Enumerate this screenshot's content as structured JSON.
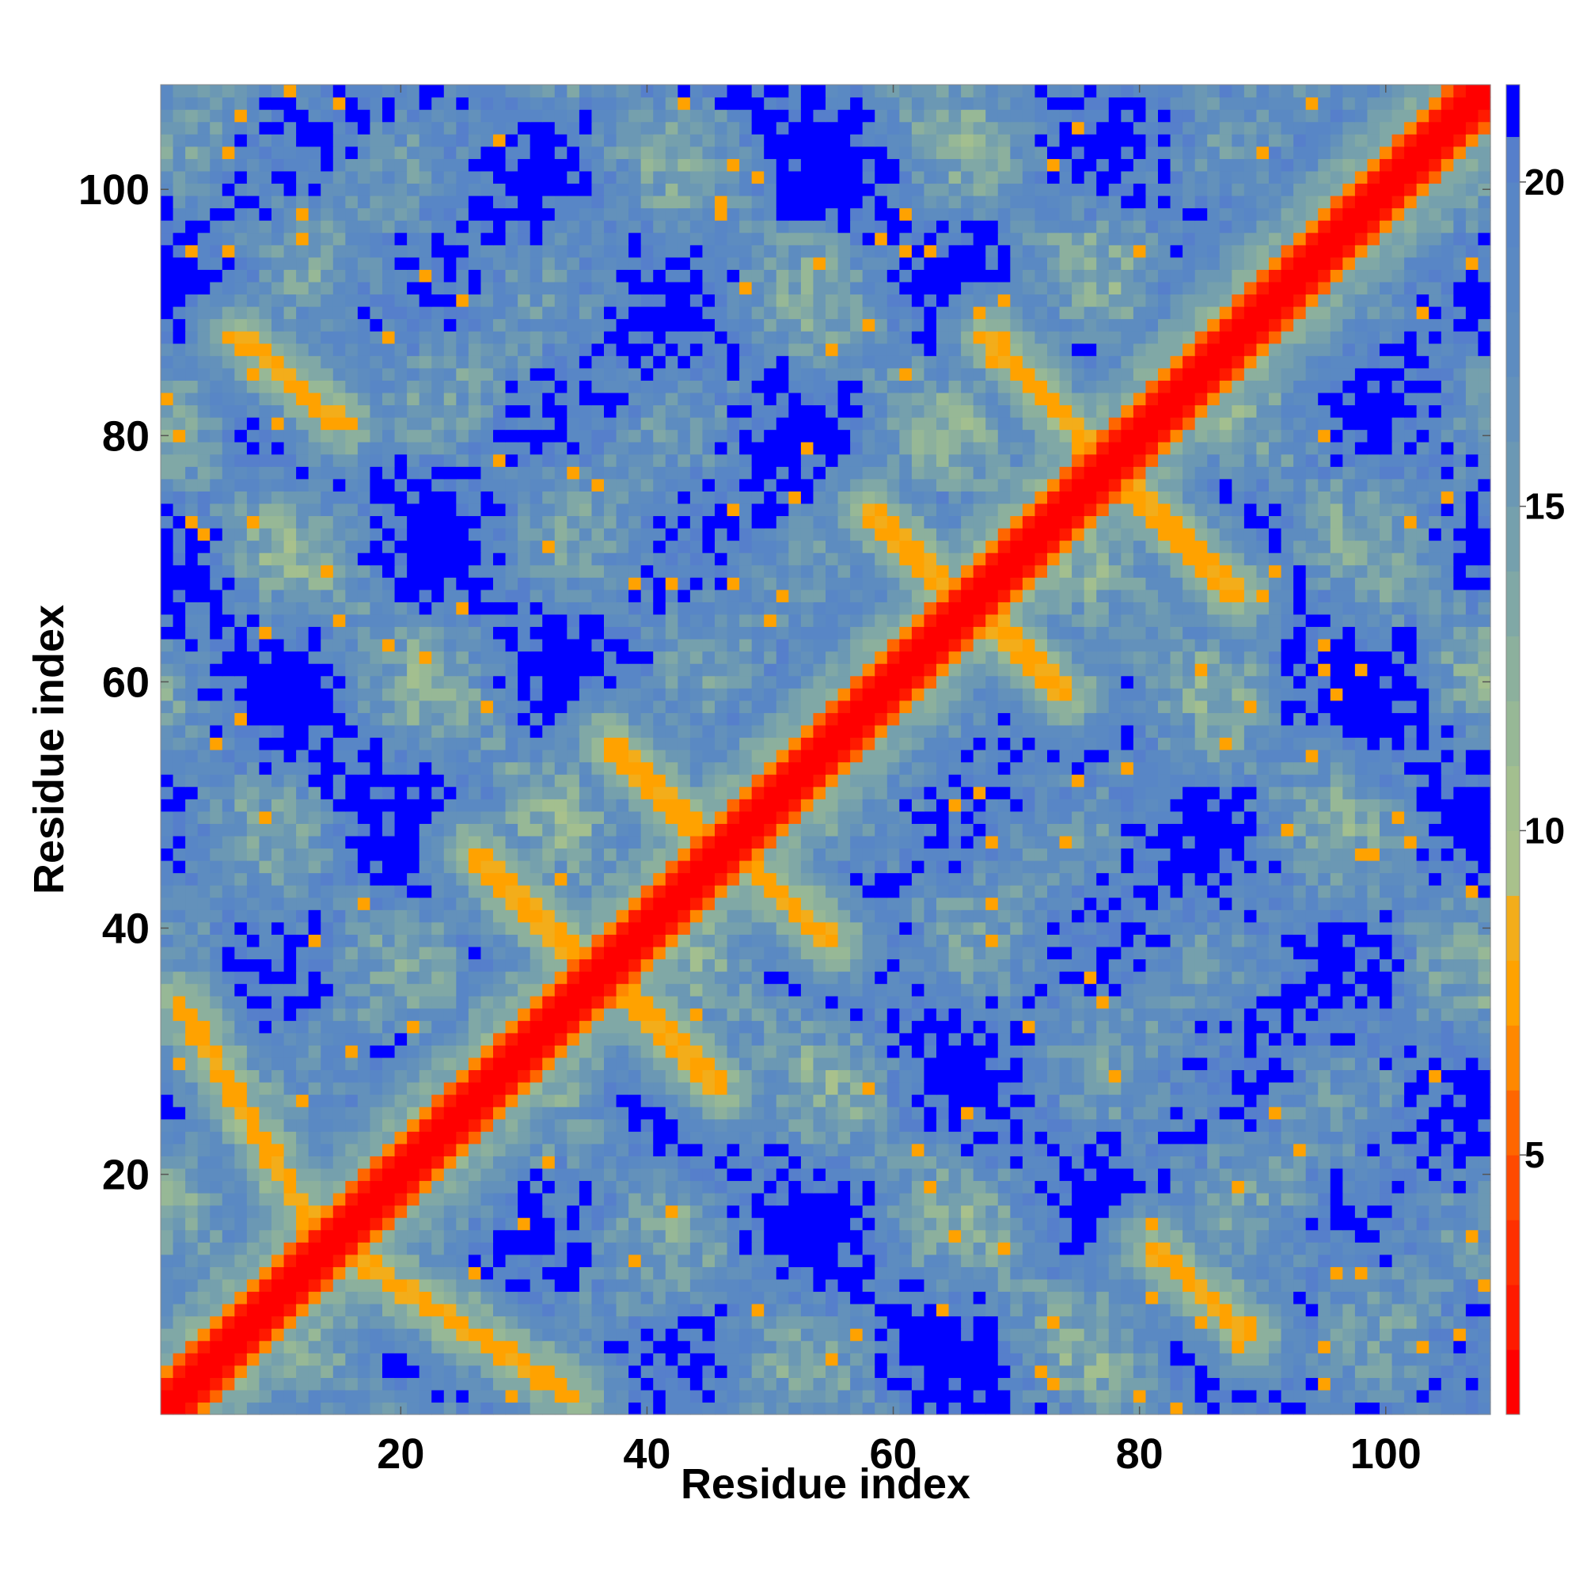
{
  "chart_data": {
    "type": "heatmap",
    "title": "",
    "xlabel": "Residue index",
    "ylabel": "Residue index",
    "n_residues": 108,
    "xlim": [
      1,
      108
    ],
    "ylim": [
      1,
      108
    ],
    "x_ticks": [
      20,
      40,
      60,
      80,
      100
    ],
    "y_ticks": [
      20,
      40,
      60,
      80,
      100
    ],
    "colorbar": {
      "range": [
        1,
        21.5
      ],
      "ticks": [
        5,
        10,
        15,
        20
      ],
      "bands": [
        {
          "from": 1.0,
          "to": 2.0,
          "color": "#ff0000"
        },
        {
          "from": 2.0,
          "to": 3.0,
          "color": "#ff1a00"
        },
        {
          "from": 3.0,
          "to": 4.0,
          "color": "#ff3000"
        },
        {
          "from": 4.0,
          "to": 5.0,
          "color": "#ff4a00"
        },
        {
          "from": 5.0,
          "to": 6.0,
          "color": "#ff6600"
        },
        {
          "from": 6.0,
          "to": 7.0,
          "color": "#ff8800"
        },
        {
          "from": 7.0,
          "to": 8.0,
          "color": "#ffa200"
        },
        {
          "from": 8.0,
          "to": 9.0,
          "color": "#f3ad1a"
        },
        {
          "from": 9.0,
          "to": 10.0,
          "color": "#a9c18c"
        },
        {
          "from": 10.0,
          "to": 11.0,
          "color": "#a3bf8f"
        },
        {
          "from": 11.0,
          "to": 12.0,
          "color": "#97b896"
        },
        {
          "from": 12.0,
          "to": 13.0,
          "color": "#8cb09d"
        },
        {
          "from": 13.0,
          "to": 14.0,
          "color": "#80a8a6"
        },
        {
          "from": 14.0,
          "to": 15.0,
          "color": "#75a0ad"
        },
        {
          "from": 15.0,
          "to": 16.0,
          "color": "#6b98b4"
        },
        {
          "from": 16.0,
          "to": 17.0,
          "color": "#6391bb"
        },
        {
          "from": 17.0,
          "to": 18.0,
          "color": "#5d8cc0"
        },
        {
          "from": 18.0,
          "to": 19.0,
          "color": "#5a89c3"
        },
        {
          "from": 19.0,
          "to": 20.0,
          "color": "#5886c6"
        },
        {
          "from": 20.0,
          "to": 20.7,
          "color": "#567fcb"
        },
        {
          "from": 20.7,
          "to": 21.5,
          "color": "#0000ff"
        }
      ]
    },
    "structure": {
      "diagonal": "helix band along i = j",
      "off_diagonal_contacts": [
        {
          "i": [
            2,
            14
          ],
          "j": [
            34,
            15
          ]
        },
        {
          "i": [
            14,
            34
          ],
          "j": [
            14,
            2
          ]
        },
        {
          "i": [
            7,
            14
          ],
          "j": [
            89,
            81
          ]
        },
        {
          "i": [
            27,
            37
          ],
          "j": [
            46,
            36
          ]
        },
        {
          "i": [
            36,
            46
          ],
          "j": [
            36,
            26
          ]
        },
        {
          "i": [
            39,
            47
          ],
          "j": [
            55,
            46
          ]
        },
        {
          "i": [
            46,
            55
          ],
          "j": [
            46,
            37
          ]
        },
        {
          "i": [
            59,
            67
          ],
          "j": [
            74,
            66
          ]
        },
        {
          "i": [
            66,
            74
          ],
          "j": [
            66,
            58
          ]
        },
        {
          "i": [
            67,
            76
          ],
          "j": [
            88,
            79
          ]
        },
        {
          "i": [
            79,
            88
          ],
          "j": [
            76,
            68
          ]
        },
        {
          "i": [
            81,
            88
          ],
          "j": [
            15,
            7
          ]
        }
      ]
    }
  }
}
